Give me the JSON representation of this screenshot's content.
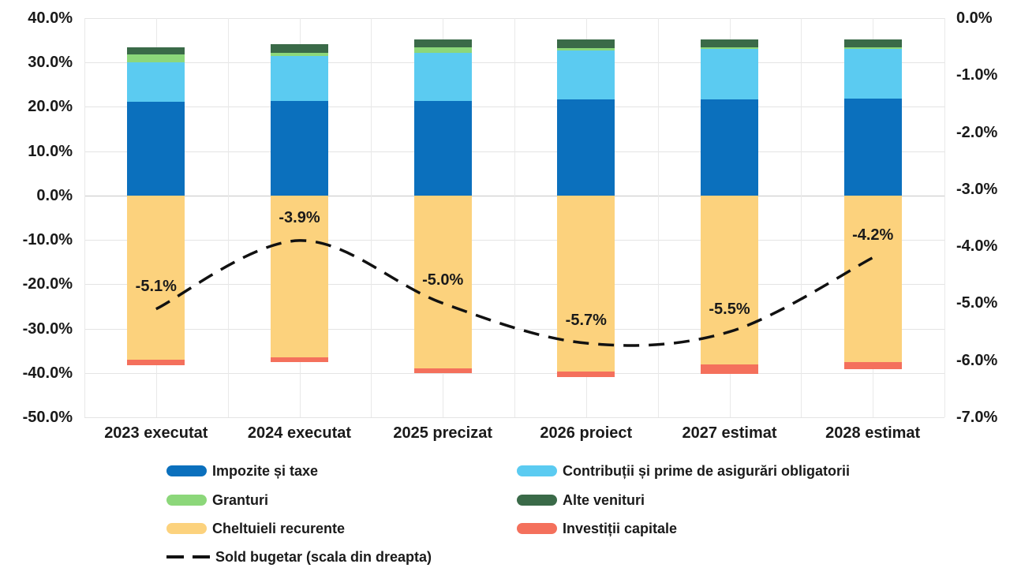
{
  "chart_data": {
    "type": "bar",
    "stacked": true,
    "orientation": "vertical",
    "grid": true,
    "legend_position": "bottom",
    "categories": [
      "2023 executat",
      "2024 executat",
      "2025 precizat",
      "2026 proiect",
      "2027 estimat",
      "2028 estimat"
    ],
    "series": [
      {
        "name": "Impozite și taxe",
        "color": "#0B70BD",
        "values": [
          21.1,
          21.3,
          21.4,
          21.7,
          21.7,
          21.9
        ]
      },
      {
        "name": "Contribuții și prime de asigurări obligatorii",
        "color": "#5BCBF1",
        "values": [
          8.9,
          10.1,
          10.7,
          11.0,
          11.3,
          11.1
        ]
      },
      {
        "name": "Granturi",
        "color": "#8CD77A",
        "values": [
          1.9,
          0.7,
          1.4,
          0.6,
          0.4,
          0.4
        ]
      },
      {
        "name": "Alte venituri",
        "color": "#3A6A48",
        "values": [
          1.6,
          2.0,
          1.7,
          1.9,
          1.8,
          1.8
        ]
      },
      {
        "name": "Cheltuieli recurente",
        "color": "#FCD27D",
        "values": [
          -37.0,
          -36.5,
          -39.0,
          -39.7,
          -38.1,
          -37.5
        ]
      },
      {
        "name": "Investiții capitale",
        "color": "#F4705C",
        "values": [
          -1.2,
          -1.1,
          -1.0,
          -1.2,
          -2.2,
          -1.7
        ]
      }
    ],
    "line_series": {
      "name": "Sold bugetar (scala din dreapta)",
      "color": "#111111",
      "axis": "right",
      "style": "dashed",
      "values": [
        -5.1,
        -3.9,
        -5.0,
        -5.7,
        -5.5,
        -4.2
      ],
      "point_labels": [
        "-5.1%",
        "-3.9%",
        "-5.0%",
        "-5.7%",
        "-5.5%",
        "-4.2%"
      ]
    },
    "left_axis": {
      "min": -50,
      "max": 40,
      "step": 10,
      "tick_labels": [
        "40.0%",
        "30.0%",
        "20.0%",
        "10.0%",
        "0.0%",
        "-10.0%",
        "-20.0%",
        "-30.0%",
        "-40.0%",
        "-50.0%"
      ]
    },
    "right_axis": {
      "min": -7,
      "max": 0,
      "step": 1,
      "tick_labels": [
        "0.0%",
        "-1.0%",
        "-2.0%",
        "-3.0%",
        "-4.0%",
        "-5.0%",
        "-6.0%",
        "-7.0%"
      ]
    }
  }
}
